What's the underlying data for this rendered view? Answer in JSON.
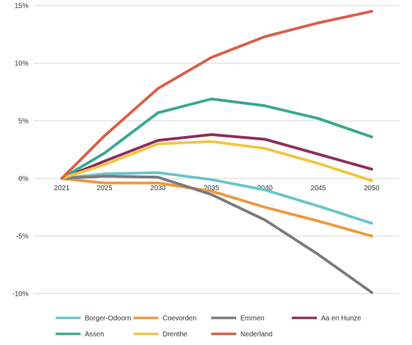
{
  "chart_data": {
    "type": "line",
    "title": "",
    "xlabel": "",
    "ylabel": "",
    "x": [
      2021,
      2025,
      2030,
      2035,
      2040,
      2045,
      2050
    ],
    "x_tick_labels": [
      "2021",
      "2025",
      "2030",
      "2035",
      "2040",
      "2045",
      "2050"
    ],
    "y_ticks": [
      15,
      10,
      5,
      0,
      -5,
      -10
    ],
    "y_tick_labels": [
      "15%",
      "10%",
      "5%",
      "0%",
      "-5%",
      "-10%"
    ],
    "ylim": [
      -10,
      15
    ],
    "grid": "horizontal",
    "legend_position": "bottom",
    "series": [
      {
        "name": "Borger-Odoorn",
        "color": "#6cc5cb",
        "values": [
          0.0,
          0.4,
          0.5,
          -0.1,
          -1.0,
          -2.4,
          -3.9
        ]
      },
      {
        "name": "Coevorden",
        "color": "#f0983c",
        "values": [
          0.0,
          -0.4,
          -0.4,
          -1.1,
          -2.5,
          -3.7,
          -5.0
        ]
      },
      {
        "name": "Emmen",
        "color": "#7b7b7e",
        "values": [
          0.0,
          0.2,
          0.1,
          -1.4,
          -3.6,
          -6.6,
          -9.9
        ]
      },
      {
        "name": "Aa en Hunze",
        "color": "#8e2e5c",
        "values": [
          0.0,
          1.5,
          3.3,
          3.8,
          3.4,
          2.1,
          0.8
        ]
      },
      {
        "name": "Assen",
        "color": "#3aa98f",
        "values": [
          0.0,
          2.2,
          5.7,
          6.9,
          6.3,
          5.2,
          3.6
        ]
      },
      {
        "name": "Drenthe",
        "color": "#f4c542",
        "values": [
          0.0,
          1.2,
          3.0,
          3.2,
          2.6,
          1.3,
          -0.2
        ]
      },
      {
        "name": "Nederland",
        "color": "#d95f48",
        "values": [
          0.0,
          3.7,
          7.8,
          10.5,
          12.3,
          13.5,
          14.5
        ]
      }
    ]
  }
}
